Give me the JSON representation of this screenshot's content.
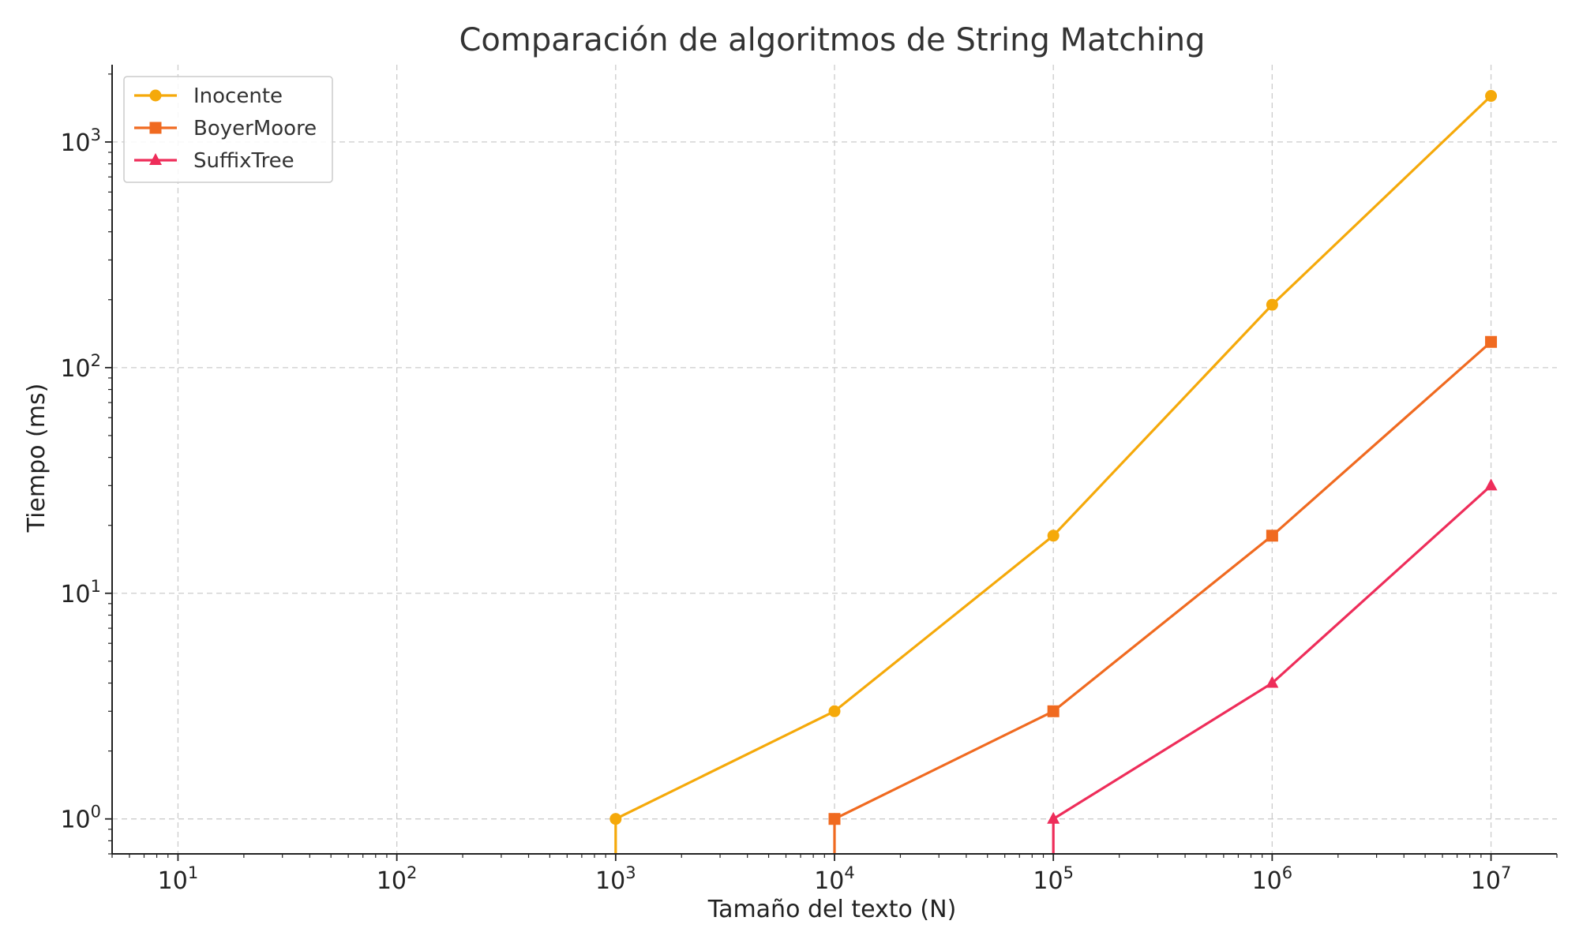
{
  "chart_data": {
    "type": "line",
    "title": "Comparación de algoritmos de String Matching",
    "xlabel": "Tamaño del texto (N)",
    "ylabel": "Tiempo (ms)",
    "xscale": "log",
    "yscale": "log",
    "xlim": [
      5,
      20000000
    ],
    "ylim": [
      0.7,
      2200
    ],
    "grid": true,
    "legend_position": "top-left",
    "x_ticks": [
      {
        "value": 10,
        "base": "10",
        "exp": "1"
      },
      {
        "value": 100,
        "base": "10",
        "exp": "2"
      },
      {
        "value": 1000,
        "base": "10",
        "exp": "3"
      },
      {
        "value": 10000,
        "base": "10",
        "exp": "4"
      },
      {
        "value": 100000,
        "base": "10",
        "exp": "5"
      },
      {
        "value": 1000000,
        "base": "10",
        "exp": "6"
      },
      {
        "value": 10000000,
        "base": "10",
        "exp": "7"
      }
    ],
    "y_ticks": [
      {
        "value": 1,
        "base": "10",
        "exp": "0"
      },
      {
        "value": 10,
        "base": "10",
        "exp": "1"
      },
      {
        "value": 100,
        "base": "10",
        "exp": "2"
      },
      {
        "value": 1000,
        "base": "10",
        "exp": "3"
      }
    ],
    "series": [
      {
        "name": "Inocente",
        "color": "#f5a90a",
        "marker": "circle",
        "x": [
          10,
          100,
          1000,
          10000,
          100000,
          1000000,
          10000000
        ],
        "y": [
          0,
          0,
          1,
          3,
          18,
          190,
          1600
        ]
      },
      {
        "name": "BoyerMoore",
        "color": "#f06a20",
        "marker": "square",
        "x": [
          10,
          100,
          1000,
          10000,
          100000,
          1000000,
          10000000
        ],
        "y": [
          0,
          0,
          0,
          1,
          3,
          18,
          130
        ]
      },
      {
        "name": "SuffixTree",
        "color": "#ee2d5a",
        "marker": "triangle",
        "x": [
          10,
          100,
          1000,
          10000,
          100000,
          1000000,
          10000000
        ],
        "y": [
          0,
          0,
          0,
          0,
          1,
          4,
          30
        ]
      }
    ]
  }
}
